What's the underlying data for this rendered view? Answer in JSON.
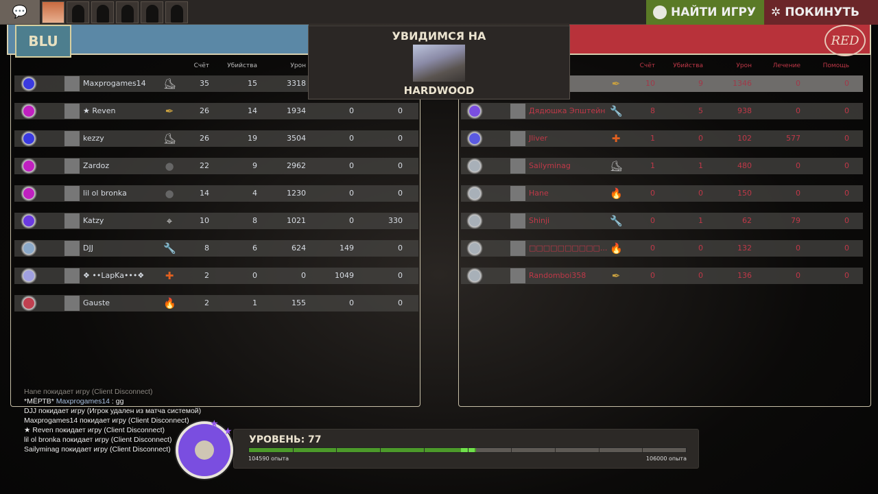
{
  "topbar": {
    "find_game": "НАЙТИ ИГРУ",
    "leave": "ПОКИНУТЬ",
    "party_slots": 6
  },
  "map_popup": {
    "title": "УВИДИМСЯ НА",
    "map": "HARDWOOD"
  },
  "teams": {
    "blu_label": "BLU",
    "red_label": "RED"
  },
  "columns": [
    "Счёт",
    "Убийства",
    "Урон",
    "Лечение",
    "Помощь"
  ],
  "colors": {
    "blu_header": "#5b88a6",
    "red_header": "#b8323a",
    "blu_text": "#d8dde4",
    "red_text": "#c03848",
    "find_game": "#5a7a26",
    "leave": "#6b2629"
  },
  "blu_players": [
    {
      "name": "Maxprogames14",
      "class": "scout",
      "score": "35",
      "kills": "15",
      "damage": "3318",
      "healing": "",
      "assists": "",
      "rank": "#3a3ae0"
    },
    {
      "name": "★ Reven",
      "class": "spy",
      "score": "26",
      "kills": "14",
      "damage": "1934",
      "healing": "0",
      "assists": "0",
      "rank": "#c020c0"
    },
    {
      "name": "kezzy",
      "class": "scout",
      "score": "26",
      "kills": "19",
      "damage": "3504",
      "healing": "0",
      "assists": "0",
      "rank": "#3a3ae0"
    },
    {
      "name": "Zardoz",
      "class": "demoman",
      "score": "22",
      "kills": "9",
      "damage": "2962",
      "healing": "0",
      "assists": "0",
      "rank": "#c020c0"
    },
    {
      "name": "lil ol bronka",
      "class": "demoman",
      "score": "14",
      "kills": "4",
      "damage": "1230",
      "healing": "0",
      "assists": "0",
      "rank": "#c020c0"
    },
    {
      "name": "Katzy",
      "class": "sniper",
      "score": "10",
      "kills": "8",
      "damage": "1021",
      "healing": "0",
      "assists": "330",
      "rank": "#6a3ae0"
    },
    {
      "name": "DJJ",
      "class": "engineer",
      "score": "8",
      "kills": "6",
      "damage": "624",
      "healing": "149",
      "assists": "0",
      "rank": "#8aa8c8"
    },
    {
      "name": "❖ ••LapKa•••❖",
      "class": "medic",
      "score": "2",
      "kills": "0",
      "damage": "0",
      "healing": "1049",
      "assists": "0",
      "rank": "#a0a0e0"
    },
    {
      "name": "Gauste",
      "class": "pyro",
      "score": "2",
      "kills": "1",
      "damage": "155",
      "healing": "0",
      "assists": "0",
      "rank": "#c04050"
    }
  ],
  "red_players": [
    {
      "name": "",
      "class": "spy",
      "score": "10",
      "kills": "9",
      "damage": "1346",
      "healing": "0",
      "assists": "0",
      "rank": "",
      "highlight": true
    },
    {
      "name": "Дядюшка Эпштейн",
      "class": "engineer",
      "score": "8",
      "kills": "5",
      "damage": "938",
      "healing": "0",
      "assists": "0",
      "rank": "#7a4ee0"
    },
    {
      "name": "Jliver",
      "class": "medic",
      "score": "1",
      "kills": "0",
      "damage": "102",
      "healing": "577",
      "assists": "0",
      "rank": "#5a5ae0"
    },
    {
      "name": "Sailyminag",
      "class": "scout",
      "score": "1",
      "kills": "1",
      "damage": "480",
      "healing": "0",
      "assists": "0",
      "rank": "#a8b0b8"
    },
    {
      "name": "Hane",
      "class": "pyro",
      "score": "0",
      "kills": "0",
      "damage": "150",
      "healing": "0",
      "assists": "0",
      "rank": "#a8b0b8"
    },
    {
      "name": "Shinji",
      "class": "engineer",
      "score": "0",
      "kills": "1",
      "damage": "62",
      "healing": "79",
      "assists": "0",
      "rank": "#a8b0b8"
    },
    {
      "name": "□□□□□□□□□□...",
      "class": "pyro",
      "score": "0",
      "kills": "0",
      "damage": "132",
      "healing": "0",
      "assists": "0",
      "rank": "#a8b0b8"
    },
    {
      "name": "Randomboi358",
      "class": "spy",
      "score": "0",
      "kills": "0",
      "damage": "136",
      "healing": "0",
      "assists": "0",
      "rank": "#a8b0b8"
    }
  ],
  "chat": [
    {
      "text": "Hane покидает игру (Client Disconnect)",
      "color": "#8a8680"
    },
    {
      "prefix": "*МЁРТВ* ",
      "name": "Maxprogames14",
      "text": " : gg",
      "color": "#eeeeee",
      "name_color": "#a8c0e0"
    },
    {
      "text": "DJJ покидает игру (Игрок удален из матча системой)",
      "color": "#eeeeee"
    },
    {
      "text": "Maxprogames14 покидает игру (Client Disconnect)",
      "color": "#eeeeee"
    },
    {
      "text": "★  Reven покидает игру (Client Disconnect)",
      "color": "#eeeeee"
    },
    {
      "text": "lil ol bronka покидает игру (Client Disconnect)",
      "color": "#eeeeee"
    },
    {
      "text": "Sailyminag покидает игру (Client Disconnect)",
      "color": "#eeeeee"
    }
  ],
  "level": {
    "title": "УРОВЕНЬ: 77",
    "xp_current": "104590 опыта",
    "xp_next": "106000 опыта",
    "progress_fraction": 0.52
  }
}
